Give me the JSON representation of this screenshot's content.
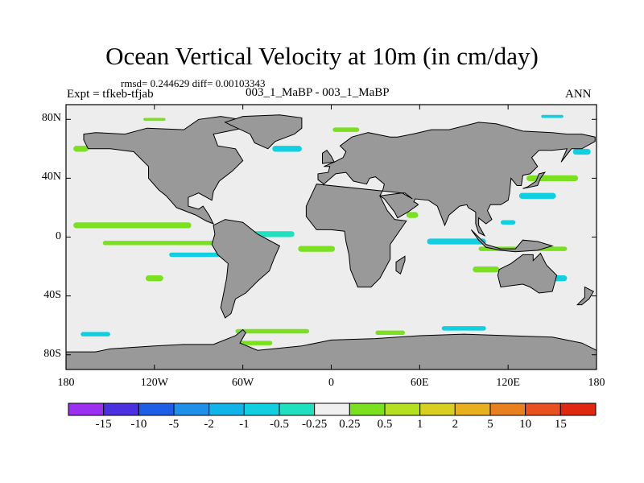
{
  "chart_data": {
    "type": "heatmap",
    "title": "Ocean Vertical Velocity at 10m (in cm/day)",
    "stats_line": "rmsd= 0.244629 diff= 0.00103343",
    "left_label": "Expt = tfkeb-tfjab",
    "center_label": "003_1_MaBP - 003_1_MaBP",
    "right_label": "ANN",
    "x_ticks": [
      "180",
      "120W",
      "60W",
      "0",
      "60E",
      "120E",
      "180"
    ],
    "y_ticks": [
      "80N",
      "40N",
      "0",
      "40S",
      "80S"
    ],
    "xlim": [
      -180,
      180
    ],
    "ylim": [
      -90,
      90
    ],
    "colorbar": {
      "labels": [
        "-15",
        "-10",
        "-5",
        "-2",
        "-1",
        "-0.5",
        "-0.25",
        "0.25",
        "0.5",
        "1",
        "2",
        "5",
        "10",
        "15"
      ],
      "colors": [
        "#9b30f0",
        "#4b30e0",
        "#1e5ee6",
        "#1e90e8",
        "#10b4e8",
        "#10cfe0",
        "#20e0c0",
        "#f0f0f0",
        "#7ae020",
        "#b4e020",
        "#d8d020",
        "#e8b020",
        "#e88020",
        "#e85020",
        "#e02810"
      ]
    },
    "land_color": "#999999",
    "ocean_color": "#ededed",
    "features": [
      {
        "lon": -135,
        "lat": 8,
        "w": 80,
        "h": 4,
        "color": "#7ae020"
      },
      {
        "lon": -110,
        "lat": -4,
        "w": 90,
        "h": 3,
        "color": "#7ae020"
      },
      {
        "lon": -90,
        "lat": -12,
        "w": 40,
        "h": 3,
        "color": "#10cfe0"
      },
      {
        "lon": -45,
        "lat": 2,
        "w": 40,
        "h": 4,
        "color": "#20e0c0"
      },
      {
        "lon": -10,
        "lat": -8,
        "w": 25,
        "h": 4,
        "color": "#7ae020"
      },
      {
        "lon": 85,
        "lat": -3,
        "w": 40,
        "h": 4,
        "color": "#10cfe0"
      },
      {
        "lon": 130,
        "lat": -8,
        "w": 60,
        "h": 3,
        "color": "#7ae020"
      },
      {
        "lon": 150,
        "lat": 40,
        "w": 35,
        "h": 4,
        "color": "#7ae020"
      },
      {
        "lon": 140,
        "lat": 28,
        "w": 25,
        "h": 4,
        "color": "#10cfe0"
      },
      {
        "lon": -30,
        "lat": 60,
        "w": 20,
        "h": 4,
        "color": "#10cfe0"
      },
      {
        "lon": 10,
        "lat": 73,
        "w": 18,
        "h": 3,
        "color": "#7ae020"
      },
      {
        "lon": -120,
        "lat": -28,
        "w": 12,
        "h": 4,
        "color": "#7ae020"
      },
      {
        "lon": 105,
        "lat": -22,
        "w": 18,
        "h": 4,
        "color": "#7ae020"
      },
      {
        "lon": 155,
        "lat": -28,
        "w": 10,
        "h": 4,
        "color": "#10cfe0"
      },
      {
        "lon": -40,
        "lat": -64,
        "w": 50,
        "h": 3,
        "color": "#7ae020"
      },
      {
        "lon": 90,
        "lat": -62,
        "w": 30,
        "h": 3,
        "color": "#10cfe0"
      },
      {
        "lon": 40,
        "lat": -65,
        "w": 20,
        "h": 3,
        "color": "#7ae020"
      },
      {
        "lon": -160,
        "lat": -66,
        "w": 20,
        "h": 3,
        "color": "#10cfe0"
      },
      {
        "lon": -55,
        "lat": -72,
        "w": 30,
        "h": 3,
        "color": "#7ae020"
      },
      {
        "lon": -170,
        "lat": 60,
        "w": 10,
        "h": 4,
        "color": "#7ae020"
      },
      {
        "lon": 170,
        "lat": 58,
        "w": 12,
        "h": 4,
        "color": "#10cfe0"
      },
      {
        "lon": 55,
        "lat": 15,
        "w": 8,
        "h": 4,
        "color": "#7ae020"
      },
      {
        "lon": 120,
        "lat": 10,
        "w": 10,
        "h": 3,
        "color": "#10cfe0"
      },
      {
        "lon": -120,
        "lat": 80,
        "w": 15,
        "h": 2,
        "color": "#7ae020"
      },
      {
        "lon": 150,
        "lat": 82,
        "w": 15,
        "h": 2,
        "color": "#10cfe0"
      }
    ],
    "land": [
      {
        "name": "north-america",
        "points": [
          [
            -168,
            70
          ],
          [
            -160,
            71
          ],
          [
            -140,
            70
          ],
          [
            -125,
            74
          ],
          [
            -100,
            73
          ],
          [
            -90,
            80
          ],
          [
            -75,
            82
          ],
          [
            -62,
            80
          ],
          [
            -60,
            74
          ],
          [
            -80,
            70
          ],
          [
            -77,
            62
          ],
          [
            -65,
            60
          ],
          [
            -60,
            52
          ],
          [
            -67,
            45
          ],
          [
            -76,
            38
          ],
          [
            -80,
            31
          ],
          [
            -81,
            25
          ],
          [
            -90,
            30
          ],
          [
            -97,
            27
          ],
          [
            -97,
            21
          ],
          [
            -90,
            19
          ],
          [
            -87,
            21
          ],
          [
            -83,
            15
          ],
          [
            -80,
            9
          ],
          [
            -85,
            11
          ],
          [
            -92,
            15
          ],
          [
            -105,
            20
          ],
          [
            -112,
            28
          ],
          [
            -117,
            32
          ],
          [
            -124,
            40
          ],
          [
            -124,
            48
          ],
          [
            -134,
            58
          ],
          [
            -150,
            60
          ],
          [
            -165,
            60
          ],
          [
            -168,
            66
          ]
        ]
      },
      {
        "name": "greenland",
        "points": [
          [
            -72,
            78
          ],
          [
            -60,
            82
          ],
          [
            -35,
            83
          ],
          [
            -20,
            81
          ],
          [
            -20,
            74
          ],
          [
            -25,
            70
          ],
          [
            -38,
            65
          ],
          [
            -43,
            60
          ],
          [
            -52,
            64
          ],
          [
            -55,
            70
          ],
          [
            -68,
            76
          ]
        ]
      },
      {
        "name": "south-america",
        "points": [
          [
            -80,
            8
          ],
          [
            -72,
            12
          ],
          [
            -60,
            10
          ],
          [
            -50,
            2
          ],
          [
            -35,
            -6
          ],
          [
            -39,
            -15
          ],
          [
            -42,
            -23
          ],
          [
            -50,
            -30
          ],
          [
            -58,
            -38
          ],
          [
            -65,
            -42
          ],
          [
            -68,
            -52
          ],
          [
            -72,
            -55
          ],
          [
            -75,
            -48
          ],
          [
            -73,
            -38
          ],
          [
            -71,
            -28
          ],
          [
            -70,
            -18
          ],
          [
            -77,
            -12
          ],
          [
            -81,
            -5
          ],
          [
            -79,
            2
          ]
        ]
      },
      {
        "name": "eurasia-africa",
        "points": [
          [
            -10,
            36
          ],
          [
            -17,
            21
          ],
          [
            -17,
            14
          ],
          [
            -10,
            5
          ],
          [
            0,
            5
          ],
          [
            9,
            4
          ],
          [
            10,
            -3
          ],
          [
            12,
            -12
          ],
          [
            13,
            -22
          ],
          [
            18,
            -34
          ],
          [
            27,
            -34
          ],
          [
            33,
            -28
          ],
          [
            40,
            -15
          ],
          [
            40,
            -5
          ],
          [
            51,
            11
          ],
          [
            43,
            12
          ],
          [
            38,
            18
          ],
          [
            33,
            28
          ],
          [
            35,
            32
          ],
          [
            36,
            36
          ],
          [
            30,
            41
          ],
          [
            26,
            40
          ],
          [
            24,
            36
          ],
          [
            15,
            38
          ],
          [
            10,
            44
          ],
          [
            3,
            43
          ],
          [
            -5,
            36
          ],
          [
            -9,
            39
          ],
          [
            -9,
            43
          ],
          [
            -2,
            44
          ],
          [
            -1,
            48
          ],
          [
            -5,
            48
          ],
          [
            2,
            51
          ],
          [
            8,
            54
          ],
          [
            10,
            58
          ],
          [
            6,
            62
          ],
          [
            14,
            68
          ],
          [
            25,
            71
          ],
          [
            40,
            68
          ],
          [
            45,
            68
          ],
          [
            55,
            70
          ],
          [
            68,
            73
          ],
          [
            80,
            73
          ],
          [
            100,
            78
          ],
          [
            112,
            77
          ],
          [
            130,
            72
          ],
          [
            150,
            71
          ],
          [
            160,
            70
          ],
          [
            170,
            70
          ],
          [
            179,
            68
          ],
          [
            179,
            65
          ],
          [
            170,
            60
          ],
          [
            163,
            60
          ],
          [
            156,
            51
          ],
          [
            160,
            60
          ],
          [
            150,
            59
          ],
          [
            141,
            59
          ],
          [
            136,
            54
          ],
          [
            140,
            48
          ],
          [
            135,
            43
          ],
          [
            130,
            42
          ],
          [
            129,
            35
          ],
          [
            126,
            35
          ],
          [
            122,
            40
          ],
          [
            121,
            30
          ],
          [
            120,
            25
          ],
          [
            115,
            22
          ],
          [
            108,
            22
          ],
          [
            106,
            18
          ],
          [
            109,
            12
          ],
          [
            105,
            9
          ],
          [
            100,
            13
          ],
          [
            100,
            8
          ],
          [
            104,
            1
          ],
          [
            100,
            3
          ],
          [
            98,
            9
          ],
          [
            98,
            17
          ],
          [
            93,
            20
          ],
          [
            92,
            22
          ],
          [
            87,
            21
          ],
          [
            80,
            15
          ],
          [
            77,
            8
          ],
          [
            72,
            21
          ],
          [
            66,
            25
          ],
          [
            57,
            26
          ],
          [
            56,
            24
          ],
          [
            58,
            23
          ],
          [
            59,
            22
          ],
          [
            52,
            17
          ],
          [
            45,
            13
          ],
          [
            43,
            17
          ],
          [
            36,
            26
          ],
          [
            33,
            28
          ],
          [
            48,
            30
          ],
          [
            55,
            26
          ],
          [
            50,
            30
          ],
          [
            48,
            30
          ]
        ]
      },
      {
        "name": "australia",
        "points": [
          [
            114,
            -22
          ],
          [
            122,
            -18
          ],
          [
            130,
            -12
          ],
          [
            137,
            -12
          ],
          [
            137,
            -16
          ],
          [
            142,
            -11
          ],
          [
            146,
            -19
          ],
          [
            153,
            -26
          ],
          [
            150,
            -37
          ],
          [
            141,
            -38
          ],
          [
            135,
            -34
          ],
          [
            130,
            -32
          ],
          [
            115,
            -34
          ],
          [
            113,
            -26
          ]
        ]
      },
      {
        "name": "antarctica",
        "points": [
          [
            -180,
            -78
          ],
          [
            -160,
            -78
          ],
          [
            -150,
            -76
          ],
          [
            -120,
            -74
          ],
          [
            -100,
            -73
          ],
          [
            -80,
            -73
          ],
          [
            -65,
            -67
          ],
          [
            -60,
            -63
          ],
          [
            -58,
            -65
          ],
          [
            -62,
            -72
          ],
          [
            -50,
            -77
          ],
          [
            -20,
            -74
          ],
          [
            0,
            -70
          ],
          [
            30,
            -69
          ],
          [
            60,
            -67
          ],
          [
            90,
            -66
          ],
          [
            120,
            -67
          ],
          [
            150,
            -68
          ],
          [
            170,
            -72
          ],
          [
            180,
            -77
          ],
          [
            180,
            -90
          ],
          [
            -180,
            -90
          ]
        ]
      },
      {
        "name": "indonesia",
        "points": [
          [
            95,
            5
          ],
          [
            105,
            -5
          ],
          [
            115,
            -8
          ],
          [
            125,
            -8
          ],
          [
            130,
            -2
          ],
          [
            140,
            -3
          ],
          [
            150,
            -6
          ],
          [
            140,
            -9
          ],
          [
            125,
            -10
          ],
          [
            115,
            -9
          ],
          [
            105,
            -7
          ],
          [
            100,
            -2
          ]
        ]
      },
      {
        "name": "uk",
        "points": [
          [
            -6,
            50
          ],
          [
            2,
            51
          ],
          [
            0,
            55
          ],
          [
            -3,
            59
          ],
          [
            -6,
            57
          ]
        ]
      },
      {
        "name": "japan",
        "points": [
          [
            130,
            33
          ],
          [
            140,
            35
          ],
          [
            142,
            40
          ],
          [
            145,
            44
          ],
          [
            141,
            43
          ],
          [
            139,
            38
          ],
          [
            133,
            34
          ]
        ]
      },
      {
        "name": "madagascar",
        "points": [
          [
            44,
            -17
          ],
          [
            50,
            -13
          ],
          [
            50,
            -16
          ],
          [
            47,
            -25
          ],
          [
            44,
            -23
          ]
        ]
      },
      {
        "name": "new-zealand",
        "points": [
          [
            172,
            -34
          ],
          [
            178,
            -37
          ],
          [
            175,
            -42
          ],
          [
            170,
            -46
          ],
          [
            167,
            -46
          ],
          [
            172,
            -41
          ]
        ]
      }
    ]
  }
}
